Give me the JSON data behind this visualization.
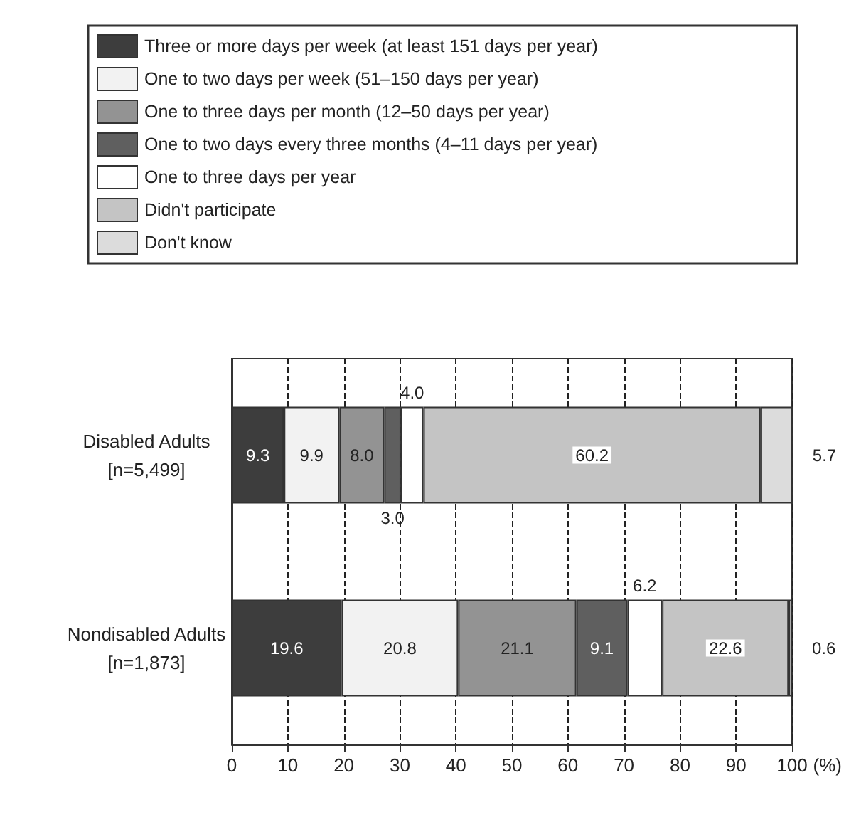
{
  "chart_data": {
    "type": "bar",
    "orientation": "horizontal",
    "stacked": true,
    "categories": [
      "Disabled Adults\n[n=5,499]",
      "Nondisabled Adults\n[n=1,873]"
    ],
    "series": [
      {
        "name": "Three or more days per week (at least 151 days per year)",
        "color": "#3d3d3d",
        "values": [
          9.3,
          19.6
        ],
        "value_labels": [
          "9.3",
          "19.6"
        ]
      },
      {
        "name": "One to two days per week (51–150 days per year)",
        "color": "#f2f2f2",
        "values": [
          9.9,
          20.8
        ],
        "value_labels": [
          "9.9",
          "20.8"
        ]
      },
      {
        "name": "One to three days per month (12–50 days per year)",
        "color": "#939393",
        "values": [
          8.0,
          21.1
        ],
        "value_labels": [
          "8.0",
          "21.1"
        ]
      },
      {
        "name": "One to two days every three months (4–11 days per year)",
        "color": "#5f5f5f",
        "values": [
          3.0,
          9.1
        ],
        "value_labels": [
          "3.0",
          "9.1"
        ]
      },
      {
        "name": "One to three days per year",
        "color": "#ffffff",
        "values": [
          4.0,
          6.2
        ],
        "value_labels": [
          "4.0",
          "6.2"
        ]
      },
      {
        "name": "Didn't participate",
        "color": "#c4c4c4",
        "values": [
          60.2,
          22.6
        ],
        "value_labels": [
          "60.2",
          "22.6"
        ]
      },
      {
        "name": "Don't know",
        "color": "#dcdcdc",
        "values": [
          5.7,
          0.6
        ],
        "value_labels": [
          "5.7",
          "0.6"
        ]
      }
    ],
    "xlabel": "(%)",
    "xlim": [
      0,
      100
    ],
    "xticks": [
      0,
      10,
      20,
      30,
      40,
      50,
      60,
      70,
      80,
      90,
      100
    ],
    "grid": "x",
    "legend": "top"
  }
}
